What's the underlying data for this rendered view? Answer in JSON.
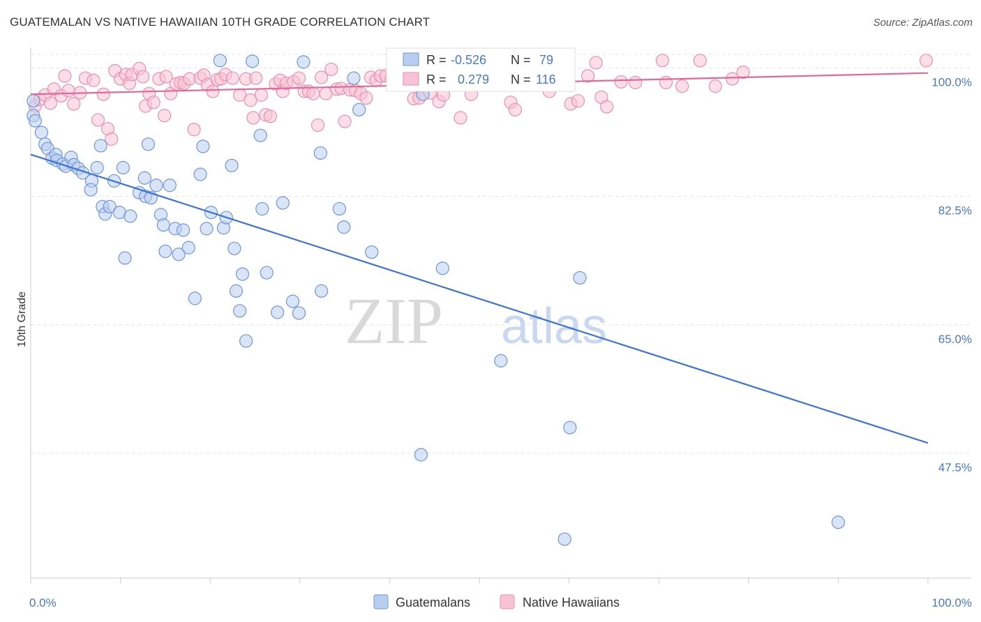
{
  "title": "GUATEMALAN VS NATIVE HAWAIIAN 10TH GRADE CORRELATION CHART",
  "source": "Source: ZipAtlas.com",
  "watermark": {
    "zip": "ZIP",
    "atlas": "atlas"
  },
  "colors": {
    "blue_fill": "#b9cdee",
    "blue_stroke": "#6f96d6",
    "blue_line": "#3a74d0",
    "pink_fill": "#f7c3d4",
    "pink_stroke": "#e98fb0",
    "pink_line": "#e0699a",
    "tick_text": "#4a78c8",
    "grid": "#e4e4e4"
  },
  "legend": {
    "rows": [
      {
        "r_label": "R =",
        "r_value": "-0.526",
        "n_label": "N =",
        "n_value": "79"
      },
      {
        "r_label": "R =",
        "r_value": "0.279",
        "n_label": "N =",
        "n_value": "116"
      }
    ]
  },
  "bottom_legend": [
    "Guatemalans",
    "Native Hawaiians"
  ],
  "chart_data": {
    "type": "scatter",
    "ylabel": "10th Grade",
    "x_tick_labels": [
      "0.0%",
      "100.0%"
    ],
    "y_tick_labels": [
      "100.0%",
      "82.5%",
      "65.0%",
      "47.5%"
    ],
    "y_ticks": [
      100,
      82.5,
      65,
      47.5
    ],
    "xlim": [
      0,
      100
    ],
    "ylim": [
      30.5,
      102.5
    ],
    "grid": true,
    "legend_position": "top-center",
    "series": [
      {
        "name": "Guatemalans",
        "trend": {
          "x": [
            0,
            100
          ],
          "y": [
            88.2,
            48.9
          ]
        },
        "points": [
          [
            0.3,
            95.5
          ],
          [
            0.3,
            93.5
          ],
          [
            0.5,
            92.8
          ],
          [
            1.2,
            91.2
          ],
          [
            1.6,
            89.6
          ],
          [
            1.9,
            89.0
          ],
          [
            2.4,
            87.7
          ],
          [
            2.8,
            88.2
          ],
          [
            2.9,
            87.4
          ],
          [
            3.6,
            86.9
          ],
          [
            3.9,
            86.6
          ],
          [
            4.5,
            87.8
          ],
          [
            4.8,
            86.8
          ],
          [
            5.3,
            86.3
          ],
          [
            5.8,
            85.7
          ],
          [
            6.8,
            84.6
          ],
          [
            6.7,
            83.4
          ],
          [
            7.4,
            86.4
          ],
          [
            7.8,
            89.4
          ],
          [
            8.0,
            81.1
          ],
          [
            8.3,
            80.1
          ],
          [
            8.8,
            81.1
          ],
          [
            9.3,
            84.6
          ],
          [
            9.9,
            80.3
          ],
          [
            10.3,
            86.4
          ],
          [
            10.5,
            74.1
          ],
          [
            11.1,
            79.8
          ],
          [
            12.1,
            83.0
          ],
          [
            12.7,
            85.0
          ],
          [
            12.8,
            82.5
          ],
          [
            13.1,
            89.6
          ],
          [
            13.4,
            82.3
          ],
          [
            14.0,
            84.0
          ],
          [
            14.5,
            80.0
          ],
          [
            14.8,
            78.6
          ],
          [
            15.0,
            75.0
          ],
          [
            15.5,
            84.0
          ],
          [
            16.1,
            78.1
          ],
          [
            16.5,
            74.6
          ],
          [
            17.0,
            77.9
          ],
          [
            17.6,
            75.5
          ],
          [
            18.3,
            68.6
          ],
          [
            18.9,
            85.5
          ],
          [
            19.2,
            89.3
          ],
          [
            19.6,
            78.1
          ],
          [
            20.1,
            80.3
          ],
          [
            21.5,
            78.2
          ],
          [
            21.1,
            101.0
          ],
          [
            21.8,
            79.6
          ],
          [
            22.4,
            86.7
          ],
          [
            22.7,
            75.4
          ],
          [
            22.9,
            69.6
          ],
          [
            23.6,
            71.9
          ],
          [
            23.3,
            66.9
          ],
          [
            24.0,
            62.8
          ],
          [
            24.7,
            100.9
          ],
          [
            25.8,
            80.8
          ],
          [
            25.6,
            90.8
          ],
          [
            26.3,
            72.1
          ],
          [
            27.5,
            66.7
          ],
          [
            28.1,
            81.6
          ],
          [
            29.2,
            68.2
          ],
          [
            29.9,
            66.6
          ],
          [
            30.4,
            100.8
          ],
          [
            32.4,
            69.6
          ],
          [
            32.3,
            88.4
          ],
          [
            34.4,
            80.8
          ],
          [
            34.9,
            78.3
          ],
          [
            36.0,
            98.6
          ],
          [
            36.6,
            94.3
          ],
          [
            38.0,
            74.9
          ],
          [
            43.5,
            47.3
          ],
          [
            43.7,
            96.4
          ],
          [
            45.9,
            72.7
          ],
          [
            52.4,
            60.1
          ],
          [
            60.1,
            51.0
          ],
          [
            61.2,
            71.4
          ],
          [
            90.0,
            38.1
          ],
          [
            59.5,
            35.8
          ]
        ]
      },
      {
        "name": "Native Hawaiians",
        "trend": {
          "x": [
            0,
            100
          ],
          "y": [
            96.4,
            99.3
          ]
        },
        "points": [
          [
            0.5,
            94.8
          ],
          [
            1.0,
            95.7
          ],
          [
            1.6,
            96.3
          ],
          [
            2.2,
            95.2
          ],
          [
            2.6,
            97.1
          ],
          [
            3.4,
            96.2
          ],
          [
            3.8,
            98.9
          ],
          [
            4.2,
            96.9
          ],
          [
            4.8,
            95.1
          ],
          [
            5.5,
            96.6
          ],
          [
            6.1,
            98.6
          ],
          [
            7.0,
            98.3
          ],
          [
            7.5,
            92.9
          ],
          [
            8.1,
            96.4
          ],
          [
            8.6,
            91.7
          ],
          [
            9.0,
            90.3
          ],
          [
            9.4,
            99.6
          ],
          [
            10.0,
            98.5
          ],
          [
            10.6,
            99.1
          ],
          [
            11.0,
            97.9
          ],
          [
            11.3,
            99.1
          ],
          [
            12.1,
            99.9
          ],
          [
            12.5,
            98.8
          ],
          [
            12.8,
            94.8
          ],
          [
            13.2,
            96.5
          ],
          [
            13.7,
            95.3
          ],
          [
            14.3,
            98.5
          ],
          [
            14.9,
            93.5
          ],
          [
            15.1,
            98.8
          ],
          [
            15.6,
            96.5
          ],
          [
            16.2,
            97.8
          ],
          [
            16.7,
            98.0
          ],
          [
            17.1,
            97.9
          ],
          [
            17.7,
            98.5
          ],
          [
            18.2,
            91.6
          ],
          [
            18.9,
            98.6
          ],
          [
            19.3,
            99.0
          ],
          [
            19.7,
            97.7
          ],
          [
            20.3,
            96.8
          ],
          [
            20.8,
            98.4
          ],
          [
            21.2,
            98.5
          ],
          [
            21.7,
            99.1
          ],
          [
            22.5,
            98.6
          ],
          [
            23.3,
            96.3
          ],
          [
            24.0,
            98.5
          ],
          [
            24.5,
            95.6
          ],
          [
            24.8,
            93.2
          ],
          [
            25.1,
            98.6
          ],
          [
            25.7,
            96.3
          ],
          [
            26.2,
            93.6
          ],
          [
            26.7,
            93.4
          ],
          [
            27.3,
            97.8
          ],
          [
            27.8,
            98.3
          ],
          [
            28.1,
            96.8
          ],
          [
            28.5,
            97.9
          ],
          [
            29.3,
            98.1
          ],
          [
            29.9,
            98.6
          ],
          [
            30.5,
            96.8
          ],
          [
            31.0,
            96.8
          ],
          [
            31.5,
            96.5
          ],
          [
            32.0,
            92.2
          ],
          [
            32.4,
            98.7
          ],
          [
            32.9,
            96.5
          ],
          [
            33.5,
            99.8
          ],
          [
            34.1,
            97.1
          ],
          [
            34.6,
            97.2
          ],
          [
            35.0,
            92.7
          ],
          [
            35.6,
            97.0
          ],
          [
            36.2,
            96.9
          ],
          [
            36.8,
            96.5
          ],
          [
            37.4,
            95.9
          ],
          [
            37.9,
            98.7
          ],
          [
            38.5,
            98.3
          ],
          [
            39.0,
            98.9
          ],
          [
            39.6,
            98.9
          ],
          [
            40.2,
            98.6
          ],
          [
            40.8,
            98.1
          ],
          [
            41.3,
            98.4
          ],
          [
            42.0,
            100.6
          ],
          [
            42.7,
            95.8
          ],
          [
            43.3,
            95.9
          ],
          [
            44.0,
            101.0
          ],
          [
            44.5,
            96.6
          ],
          [
            45.0,
            98.0
          ],
          [
            45.5,
            95.4
          ],
          [
            46.0,
            96.3
          ],
          [
            47.2,
            99.0
          ],
          [
            47.9,
            93.2
          ],
          [
            48.6,
            100.6
          ],
          [
            49.1,
            96.4
          ],
          [
            50.0,
            98.8
          ],
          [
            50.8,
            100.7
          ],
          [
            52.1,
            98.0
          ],
          [
            53.5,
            95.3
          ],
          [
            54.0,
            94.3
          ],
          [
            55.0,
            100.6
          ],
          [
            56.2,
            99.6
          ],
          [
            57.0,
            98.4
          ],
          [
            57.8,
            96.8
          ],
          [
            59.3,
            100.9
          ],
          [
            60.2,
            95.1
          ],
          [
            61.0,
            95.5
          ],
          [
            62.1,
            98.9
          ],
          [
            63.0,
            100.7
          ],
          [
            63.6,
            96.0
          ],
          [
            64.2,
            94.7
          ],
          [
            65.8,
            98.1
          ],
          [
            67.4,
            98.0
          ],
          [
            70.4,
            101.0
          ],
          [
            70.8,
            98.0
          ],
          [
            72.6,
            97.5
          ],
          [
            74.6,
            101.0
          ],
          [
            76.3,
            97.5
          ],
          [
            79.4,
            99.4
          ],
          [
            78.2,
            98.5
          ],
          [
            99.8,
            101.0
          ]
        ]
      }
    ]
  }
}
